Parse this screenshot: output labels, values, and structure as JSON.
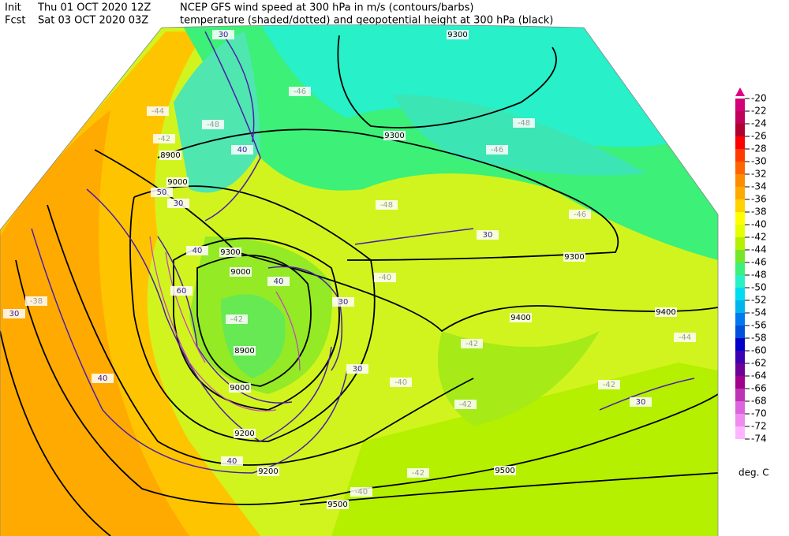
{
  "header": {
    "init_label": "Init",
    "init_time": "Thu 01 OCT 2020 12Z",
    "title_line1": "NCEP GFS wind speed at 300 hPa in m/s (contours/barbs)",
    "fcst_label": "Fcst",
    "fcst_time": "Sat 03 OCT 2020 03Z",
    "title_line2": "temperature (shaded/dotted) and geopotential height at 300 hPa (black)"
  },
  "map": {
    "height_labels": [
      "9300",
      "9300",
      "8900",
      "9000",
      "9000",
      "9300",
      "9300",
      "9400",
      "9400",
      "9500",
      "9500",
      "9200",
      "9000",
      "8900",
      "9200"
    ],
    "temp_labels": [
      "-46",
      "-48",
      "-44",
      "-42",
      "-42",
      "-40",
      "-40",
      "-42",
      "-44",
      "-48",
      "-48",
      "-46",
      "-46",
      "-42",
      "-40",
      "-42",
      "-38",
      "-42"
    ],
    "wind_labels": [
      "30",
      "40",
      "30",
      "40",
      "50",
      "60",
      "40",
      "30",
      "30",
      "40",
      "30",
      "30",
      "30",
      "40"
    ],
    "legend": {
      "unit": "deg. C",
      "levels": [
        -20,
        -22,
        -24,
        -26,
        -28,
        -30,
        -32,
        -34,
        -36,
        -38,
        -40,
        -42,
        -44,
        -46,
        -48,
        -50,
        -52,
        -54,
        -56,
        -58,
        -60,
        -62,
        -64,
        -66,
        -68,
        -70,
        -72,
        -74
      ],
      "colors": [
        "#d4007a",
        "#c0005a",
        "#b00030",
        "#ff0000",
        "#ff3c00",
        "#ff6400",
        "#ff8c00",
        "#ffaa00",
        "#ffd200",
        "#ffff00",
        "#e6ff00",
        "#b4f000",
        "#78e628",
        "#3cf078",
        "#28f0c8",
        "#00dcf0",
        "#00b4f0",
        "#0078f0",
        "#0050dc",
        "#0000c8",
        "#3c00b4",
        "#6e0096",
        "#a0008c",
        "#be32b4",
        "#dc64dc",
        "#f08cf0",
        "#ffb4ff"
      ]
    }
  }
}
